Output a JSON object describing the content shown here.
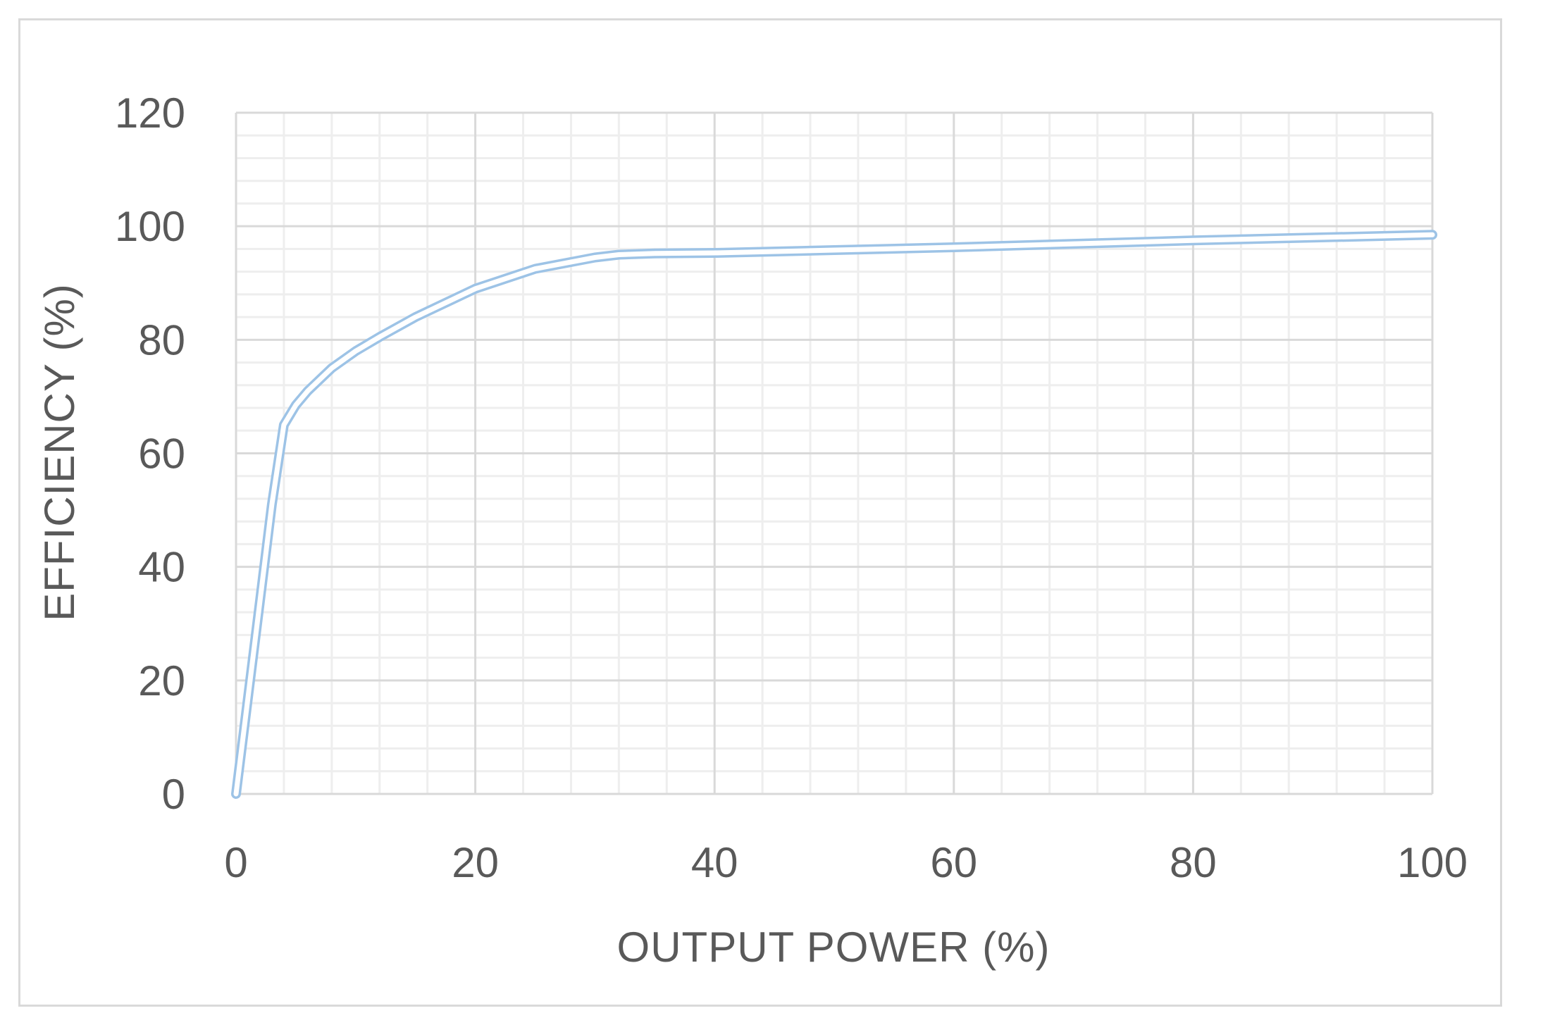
{
  "chart_data": {
    "type": "line",
    "title": "",
    "xlabel": "OUTPUT POWER (%)",
    "ylabel": "EFFICIENCY (%)",
    "xlim": [
      0,
      100
    ],
    "ylim": [
      0,
      120
    ],
    "x_ticks": [
      "0",
      "20",
      "40",
      "60",
      "80",
      "100"
    ],
    "y_ticks": [
      "0",
      "20",
      "40",
      "60",
      "80",
      "100",
      "120"
    ],
    "grid": true,
    "legend": "none",
    "series": [
      {
        "color": "#9dc3e6",
        "x": [
          0,
          1,
          2,
          3,
          4,
          5,
          6,
          8,
          10,
          12,
          15,
          20,
          25,
          30,
          32,
          35,
          40,
          50,
          60,
          70,
          80,
          90,
          100
        ],
        "y": [
          0,
          17,
          34,
          51,
          65,
          68.5,
          71,
          75,
          78,
          80.5,
          84,
          89,
          92.5,
          94.5,
          95,
          95.2,
          95.3,
          95.8,
          96.3,
          96.9,
          97.5,
          98,
          98.5
        ]
      }
    ]
  }
}
